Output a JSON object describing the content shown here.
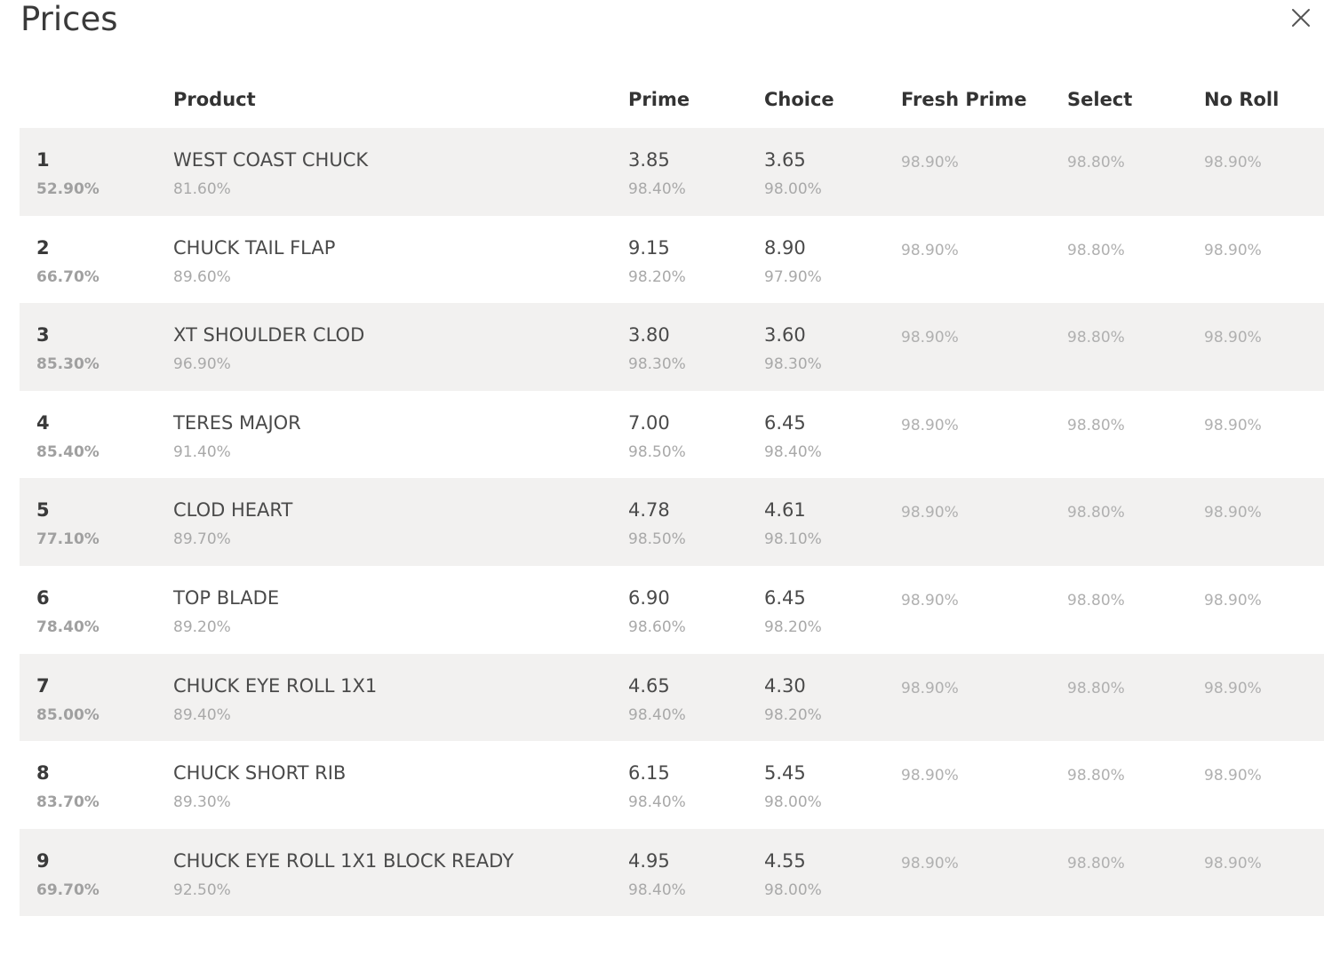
{
  "dialog": {
    "title": "Prices",
    "close_icon": "close-icon"
  },
  "table": {
    "columns": [
      "",
      "Product",
      "Prime",
      "Choice",
      "Fresh Prime",
      "Select",
      "No Roll"
    ],
    "rows": [
      {
        "rank": "1",
        "rank_pct": "52.90%",
        "product": "WEST COAST CHUCK",
        "product_pct": "81.60%",
        "prime": "3.85",
        "prime_pct": "98.40%",
        "choice": "3.65",
        "choice_pct": "98.00%",
        "fresh_prime": "98.90%",
        "select": "98.80%",
        "no_roll": "98.90%"
      },
      {
        "rank": "2",
        "rank_pct": "66.70%",
        "product": "CHUCK TAIL FLAP",
        "product_pct": "89.60%",
        "prime": "9.15",
        "prime_pct": "98.20%",
        "choice": "8.90",
        "choice_pct": "97.90%",
        "fresh_prime": "98.90%",
        "select": "98.80%",
        "no_roll": "98.90%"
      },
      {
        "rank": "3",
        "rank_pct": "85.30%",
        "product": "XT SHOULDER CLOD",
        "product_pct": "96.90%",
        "prime": "3.80",
        "prime_pct": "98.30%",
        "choice": "3.60",
        "choice_pct": "98.30%",
        "fresh_prime": "98.90%",
        "select": "98.80%",
        "no_roll": "98.90%"
      },
      {
        "rank": "4",
        "rank_pct": "85.40%",
        "product": "TERES MAJOR",
        "product_pct": "91.40%",
        "prime": "7.00",
        "prime_pct": "98.50%",
        "choice": "6.45",
        "choice_pct": "98.40%",
        "fresh_prime": "98.90%",
        "select": "98.80%",
        "no_roll": "98.90%"
      },
      {
        "rank": "5",
        "rank_pct": "77.10%",
        "product": "CLOD HEART",
        "product_pct": "89.70%",
        "prime": "4.78",
        "prime_pct": "98.50%",
        "choice": "4.61",
        "choice_pct": "98.10%",
        "fresh_prime": "98.90%",
        "select": "98.80%",
        "no_roll": "98.90%"
      },
      {
        "rank": "6",
        "rank_pct": "78.40%",
        "product": "TOP BLADE",
        "product_pct": "89.20%",
        "prime": "6.90",
        "prime_pct": "98.60%",
        "choice": "6.45",
        "choice_pct": "98.20%",
        "fresh_prime": "98.90%",
        "select": "98.80%",
        "no_roll": "98.90%"
      },
      {
        "rank": "7",
        "rank_pct": "85.00%",
        "product": "CHUCK EYE ROLL 1X1",
        "product_pct": "89.40%",
        "prime": "4.65",
        "prime_pct": "98.40%",
        "choice": "4.30",
        "choice_pct": "98.20%",
        "fresh_prime": "98.90%",
        "select": "98.80%",
        "no_roll": "98.90%"
      },
      {
        "rank": "8",
        "rank_pct": "83.70%",
        "product": "CHUCK SHORT RIB",
        "product_pct": "89.30%",
        "prime": "6.15",
        "prime_pct": "98.40%",
        "choice": "5.45",
        "choice_pct": "98.00%",
        "fresh_prime": "98.90%",
        "select": "98.80%",
        "no_roll": "98.90%"
      },
      {
        "rank": "9",
        "rank_pct": "69.70%",
        "product": "CHUCK EYE ROLL 1X1 BLOCK READY",
        "product_pct": "92.50%",
        "prime": "4.95",
        "prime_pct": "98.40%",
        "choice": "4.55",
        "choice_pct": "98.00%",
        "fresh_prime": "98.90%",
        "select": "98.80%",
        "no_roll": "98.90%"
      }
    ]
  }
}
